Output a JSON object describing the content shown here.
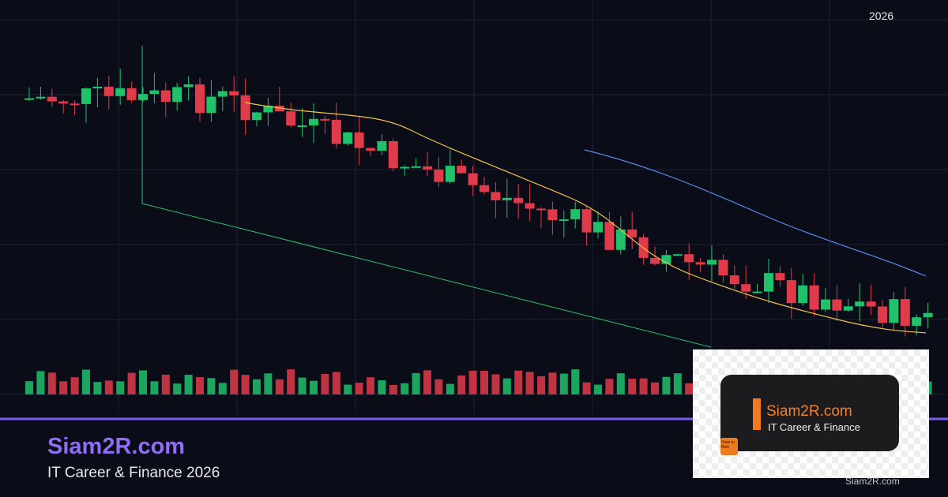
{
  "header": {
    "year": "2026"
  },
  "footer": {
    "brand": "Siam2R.com",
    "tagline": "IT Career & Finance 2026"
  },
  "logo": {
    "brand": "Siam2R.com",
    "tagline": "IT Career & Finance",
    "badge": "Siam to Rich",
    "watermark": "Siam2R.com"
  }
}
